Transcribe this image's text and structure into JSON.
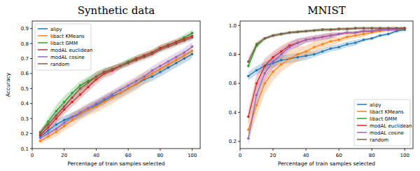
{
  "chart_data": [
    {
      "type": "line",
      "title": "Synthetic data",
      "x_label": "Percentage of train samples selected",
      "y_label": "Accuracy",
      "x": [
        5,
        10,
        15,
        20,
        25,
        30,
        35,
        40,
        45,
        50,
        55,
        60,
        65,
        70,
        75,
        80,
        85,
        90,
        95,
        100
      ],
      "xlim": [
        0,
        105
      ],
      "ylim": [
        0.1,
        0.95
      ],
      "xticks": [
        0,
        20,
        40,
        60,
        80,
        100
      ],
      "yticks": [
        0.1,
        0.2,
        0.3,
        0.4,
        0.5,
        0.6,
        0.7,
        0.8,
        0.9
      ],
      "grid": false,
      "legend": "upper-left",
      "marker": "circle",
      "series": [
        {
          "name": "alipy",
          "color": "#1f77b4",
          "values": [
            0.18,
            0.22,
            0.26,
            0.29,
            0.31,
            0.33,
            0.36,
            0.39,
            0.42,
            0.45,
            0.47,
            0.5,
            0.53,
            0.56,
            0.58,
            0.61,
            0.64,
            0.67,
            0.7,
            0.73
          ],
          "error": [
            0.02,
            0.02,
            0.03,
            0.03,
            0.03,
            0.03,
            0.03,
            0.03,
            0.03,
            0.03,
            0.03,
            0.03,
            0.03,
            0.03,
            0.03,
            0.03,
            0.03,
            0.03,
            0.03,
            0.03
          ]
        },
        {
          "name": "libact KMeans",
          "color": "#ff7f0e",
          "values": [
            0.15,
            0.18,
            0.21,
            0.25,
            0.29,
            0.33,
            0.36,
            0.38,
            0.41,
            0.44,
            0.47,
            0.5,
            0.53,
            0.57,
            0.6,
            0.63,
            0.66,
            0.69,
            0.72,
            0.75
          ],
          "error": [
            0.02,
            0.02,
            0.03,
            0.03,
            0.04,
            0.04,
            0.04,
            0.04,
            0.04,
            0.04,
            0.04,
            0.04,
            0.04,
            0.04,
            0.03,
            0.03,
            0.03,
            0.03,
            0.03,
            0.03
          ]
        },
        {
          "name": "libact GMM",
          "color": "#2ca02c",
          "values": [
            0.2,
            0.28,
            0.35,
            0.41,
            0.47,
            0.52,
            0.55,
            0.58,
            0.61,
            0.63,
            0.65,
            0.68,
            0.7,
            0.72,
            0.74,
            0.77,
            0.79,
            0.81,
            0.84,
            0.87
          ],
          "error": [
            0.02,
            0.03,
            0.04,
            0.04,
            0.03,
            0.03,
            0.03,
            0.03,
            0.03,
            0.02,
            0.02,
            0.02,
            0.02,
            0.02,
            0.02,
            0.02,
            0.02,
            0.02,
            0.02,
            0.02
          ]
        },
        {
          "name": "modAL euclidean",
          "color": "#d62728",
          "values": [
            0.19,
            0.24,
            0.3,
            0.36,
            0.41,
            0.46,
            0.51,
            0.56,
            0.6,
            0.62,
            0.65,
            0.67,
            0.7,
            0.72,
            0.74,
            0.77,
            0.79,
            0.81,
            0.83,
            0.85
          ],
          "error": [
            0.02,
            0.03,
            0.03,
            0.03,
            0.03,
            0.03,
            0.03,
            0.03,
            0.03,
            0.03,
            0.02,
            0.02,
            0.02,
            0.02,
            0.02,
            0.02,
            0.02,
            0.02,
            0.02,
            0.02
          ]
        },
        {
          "name": "modAL cosine",
          "color": "#9467bd",
          "values": [
            0.17,
            0.2,
            0.23,
            0.27,
            0.31,
            0.34,
            0.37,
            0.4,
            0.43,
            0.46,
            0.49,
            0.52,
            0.55,
            0.58,
            0.62,
            0.65,
            0.68,
            0.71,
            0.74,
            0.78
          ],
          "error": [
            0.02,
            0.02,
            0.02,
            0.03,
            0.03,
            0.03,
            0.03,
            0.03,
            0.03,
            0.03,
            0.03,
            0.03,
            0.03,
            0.03,
            0.03,
            0.03,
            0.03,
            0.03,
            0.03,
            0.03
          ]
        },
        {
          "name": "random",
          "color": "#8c564b",
          "values": [
            0.21,
            0.26,
            0.32,
            0.38,
            0.44,
            0.5,
            0.54,
            0.58,
            0.61,
            0.63,
            0.65,
            0.67,
            0.69,
            0.71,
            0.73,
            0.76,
            0.78,
            0.8,
            0.82,
            0.84
          ],
          "error": [
            0.02,
            0.02,
            0.03,
            0.03,
            0.03,
            0.03,
            0.03,
            0.03,
            0.02,
            0.02,
            0.02,
            0.02,
            0.02,
            0.02,
            0.02,
            0.02,
            0.02,
            0.02,
            0.02,
            0.02
          ]
        }
      ]
    },
    {
      "type": "line",
      "title": "MNIST",
      "x_label": "Percentage of train samples selected",
      "x": [
        5,
        10,
        15,
        20,
        25,
        30,
        35,
        40,
        45,
        50,
        55,
        60,
        65,
        70,
        75,
        80,
        85,
        90,
        95,
        100
      ],
      "xlim": [
        0,
        105
      ],
      "ylim": [
        0.15,
        1.03
      ],
      "xticks": [
        0,
        20,
        40,
        60,
        80,
        100
      ],
      "yticks": [
        0.2,
        0.4,
        0.6,
        0.8,
        {
          "value": 1,
          "label": "1.0"
        }
      ],
      "grid": false,
      "legend": "lower-right",
      "marker": "circle",
      "series": [
        {
          "name": "alipy",
          "color": "#1f77b4",
          "values": [
            0.65,
            0.69,
            0.72,
            0.74,
            0.76,
            0.77,
            0.78,
            0.79,
            0.8,
            0.82,
            0.84,
            0.85,
            0.87,
            0.88,
            0.9,
            0.91,
            0.93,
            0.94,
            0.96,
            0.97
          ],
          "error": [
            0.03,
            0.03,
            0.03,
            0.03,
            0.03,
            0.03,
            0.03,
            0.03,
            0.02,
            0.02,
            0.02,
            0.02,
            0.02,
            0.02,
            0.01,
            0.01,
            0.01,
            0.01,
            0.01,
            0.01
          ]
        },
        {
          "name": "libact KMeans",
          "color": "#ff7f0e",
          "values": [
            0.28,
            0.45,
            0.6,
            0.68,
            0.73,
            0.77,
            0.8,
            0.82,
            0.85,
            0.87,
            0.89,
            0.9,
            0.92,
            0.93,
            0.94,
            0.95,
            0.96,
            0.97,
            0.97,
            0.98
          ],
          "error": [
            0.06,
            0.08,
            0.07,
            0.06,
            0.05,
            0.05,
            0.05,
            0.04,
            0.04,
            0.03,
            0.03,
            0.02,
            0.02,
            0.02,
            0.02,
            0.01,
            0.01,
            0.01,
            0.01,
            0.01
          ]
        },
        {
          "name": "libact GMM",
          "color": "#2ca02c",
          "values": [
            0.72,
            0.86,
            0.91,
            0.93,
            0.94,
            0.95,
            0.955,
            0.96,
            0.965,
            0.97,
            0.97,
            0.975,
            0.975,
            0.98,
            0.98,
            0.98,
            0.98,
            0.98,
            0.98,
            0.98
          ],
          "error": [
            0.03,
            0.02,
            0.01,
            0.01,
            0.01,
            0.01,
            0.01,
            0.01,
            0.01,
            0.01,
            0.01,
            0.01,
            0.01,
            0.01,
            0.01,
            0.01,
            0.01,
            0.01,
            0.01,
            0.01
          ]
        },
        {
          "name": "modAL euclidean",
          "color": "#d62728",
          "values": [
            0.37,
            0.6,
            0.72,
            0.78,
            0.82,
            0.86,
            0.88,
            0.9,
            0.91,
            0.92,
            0.93,
            0.94,
            0.95,
            0.95,
            0.96,
            0.96,
            0.97,
            0.97,
            0.97,
            0.98
          ],
          "error": [
            0.05,
            0.06,
            0.05,
            0.04,
            0.04,
            0.03,
            0.03,
            0.02,
            0.02,
            0.02,
            0.02,
            0.01,
            0.01,
            0.01,
            0.01,
            0.01,
            0.01,
            0.01,
            0.01,
            0.01
          ]
        },
        {
          "name": "modAL cosine",
          "color": "#9467bd",
          "values": [
            0.22,
            0.52,
            0.67,
            0.75,
            0.8,
            0.85,
            0.88,
            0.9,
            0.91,
            0.92,
            0.93,
            0.94,
            0.95,
            0.95,
            0.96,
            0.96,
            0.97,
            0.97,
            0.97,
            0.98
          ],
          "error": [
            0.05,
            0.07,
            0.06,
            0.05,
            0.04,
            0.03,
            0.03,
            0.02,
            0.02,
            0.02,
            0.02,
            0.01,
            0.01,
            0.01,
            0.01,
            0.01,
            0.01,
            0.01,
            0.01,
            0.01
          ]
        },
        {
          "name": "random",
          "color": "#8c564b",
          "values": [
            0.75,
            0.87,
            0.91,
            0.93,
            0.94,
            0.95,
            0.955,
            0.96,
            0.965,
            0.97,
            0.97,
            0.975,
            0.975,
            0.98,
            0.98,
            0.98,
            0.98,
            0.98,
            0.98,
            0.98
          ],
          "error": [
            0.03,
            0.02,
            0.01,
            0.01,
            0.01,
            0.01,
            0.01,
            0.01,
            0.01,
            0.01,
            0.01,
            0.01,
            0.01,
            0.01,
            0.01,
            0.01,
            0.01,
            0.01,
            0.01,
            0.01
          ]
        }
      ]
    }
  ]
}
